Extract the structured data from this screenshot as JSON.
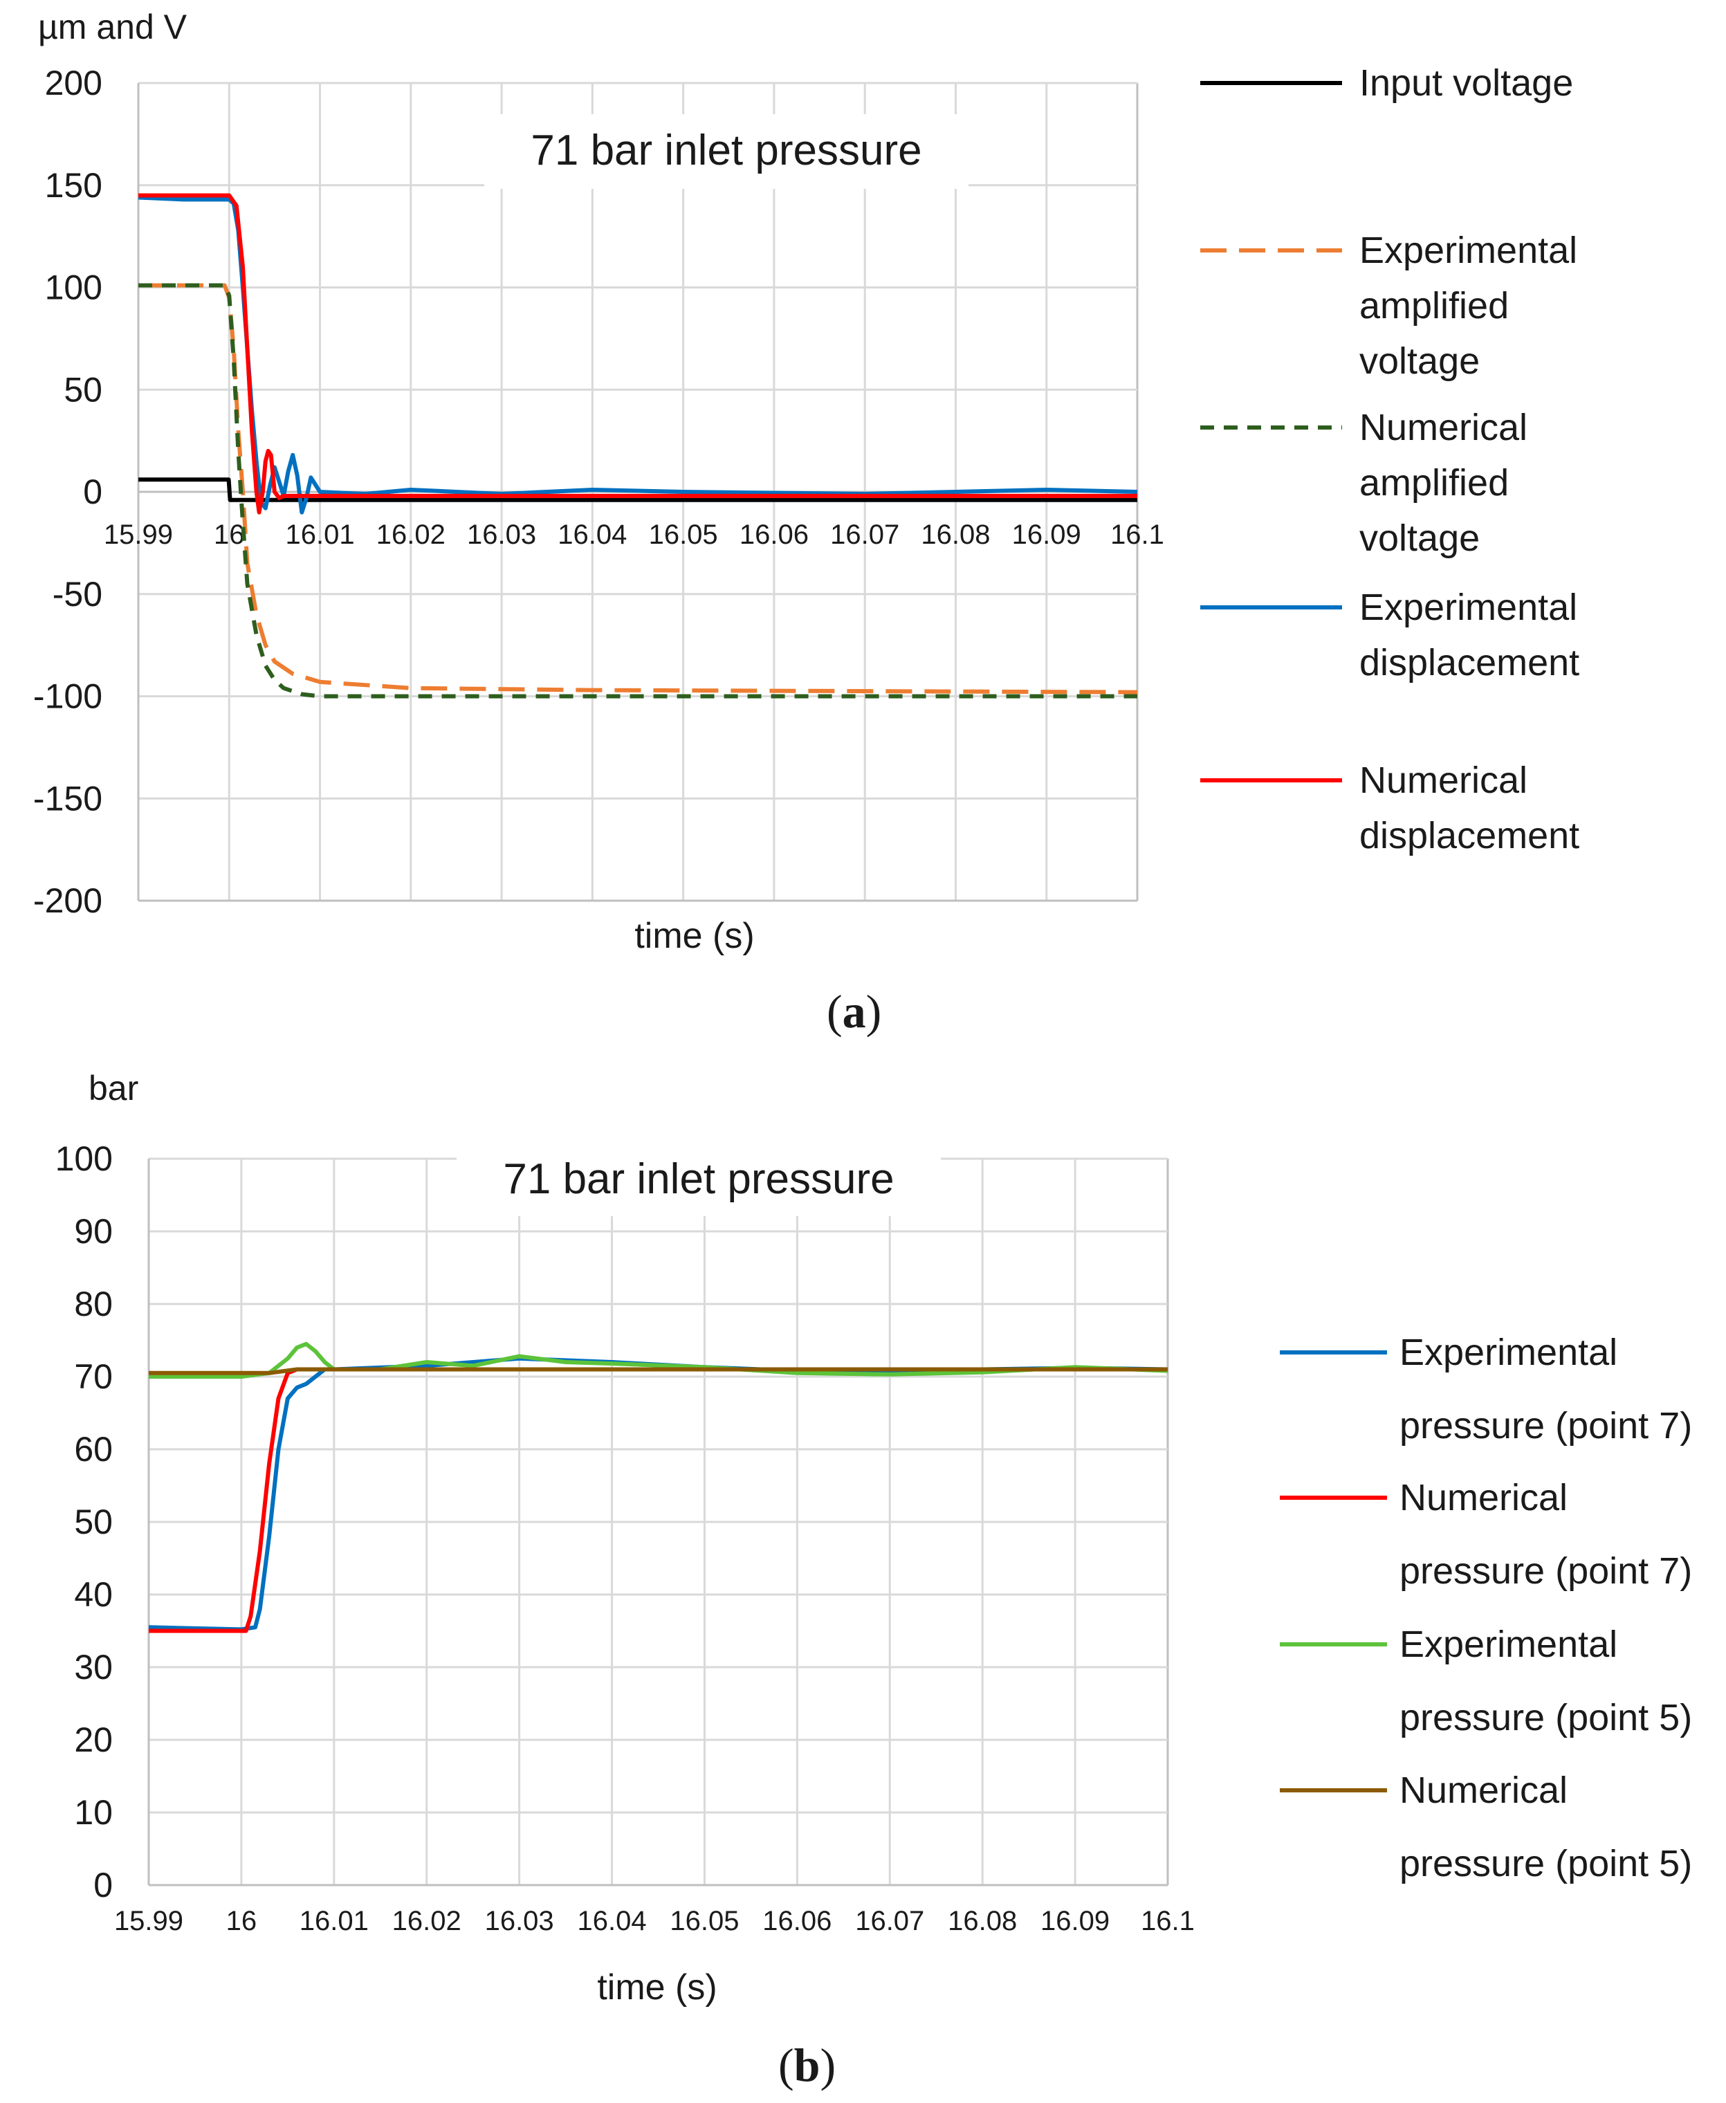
{
  "chart_data": [
    {
      "id": "a",
      "type": "line",
      "panel_label": "a",
      "title": "71 bar inlet pressure",
      "ylabel": "µm and V",
      "xlabel": "time (s)",
      "xlim": [
        15.99,
        16.1
      ],
      "ylim": [
        -200,
        200
      ],
      "grid": true,
      "legend_position": "right",
      "x_ticks": [
        "15.99",
        "16",
        "16.01",
        "16.02",
        "16.03",
        "16.04",
        "16.05",
        "16.06",
        "16.07",
        "16.08",
        "16.09",
        "16.1"
      ],
      "y_ticks": [
        "200",
        "150",
        "100",
        "50",
        "0",
        "-50",
        "-100",
        "-150",
        "-200"
      ],
      "series": [
        {
          "name": "Input voltage",
          "legend": [
            "Input voltage"
          ],
          "color": "#000000",
          "dash": "solid",
          "x": [
            15.99,
            15.99995,
            16.0001,
            16.1
          ],
          "y": [
            6,
            6,
            -4,
            -4
          ]
        },
        {
          "name": "Experimental amplified voltage",
          "legend": [
            "Experimental",
            "amplified",
            "voltage"
          ],
          "color": "#ED7D31",
          "dash": "long-dash",
          "x": [
            15.99,
            15.9995,
            16.0,
            16.0005,
            16.001,
            16.0015,
            16.002,
            16.003,
            16.004,
            16.005,
            16.007,
            16.01,
            16.02,
            16.04,
            16.1
          ],
          "y": [
            101,
            101,
            95,
            70,
            30,
            0,
            -35,
            -60,
            -75,
            -83,
            -89,
            -93,
            -96,
            -97,
            -98
          ]
        },
        {
          "name": "Numerical amplified voltage",
          "legend": [
            "Numerical",
            "amplified",
            "voltage"
          ],
          "color": "#2E5E1E",
          "dash": "short-dash",
          "x": [
            15.99,
            15.9995,
            16.0,
            16.0005,
            16.001,
            16.0015,
            16.002,
            16.003,
            16.004,
            16.005,
            16.006,
            16.008,
            16.01,
            16.1
          ],
          "y": [
            101,
            101,
            96,
            65,
            20,
            -15,
            -45,
            -70,
            -85,
            -92,
            -96,
            -99,
            -100,
            -100
          ]
        },
        {
          "name": "Experimental displacement",
          "legend": [
            "Experimental",
            "displacement"
          ],
          "color": "#0070C0",
          "dash": "solid",
          "x": [
            15.99,
            15.995,
            16.0,
            16.0005,
            16.001,
            16.0015,
            16.002,
            16.0025,
            16.003,
            16.0035,
            16.004,
            16.0045,
            16.005,
            16.0055,
            16.006,
            16.0065,
            16.007,
            16.0075,
            16.008,
            16.0085,
            16.009,
            16.01,
            16.015,
            16.02,
            16.03,
            16.04,
            16.05,
            16.07,
            16.09,
            16.1
          ],
          "y": [
            144,
            143,
            143,
            141,
            128,
            100,
            70,
            40,
            15,
            -5,
            -8,
            3,
            12,
            5,
            -2,
            10,
            18,
            8,
            -10,
            -3,
            7,
            0,
            -1,
            1,
            -1,
            1,
            0,
            -1,
            1,
            0
          ]
        },
        {
          "name": "Numerical displacement",
          "legend": [
            "Numerical",
            "displacement"
          ],
          "color": "#FF0000",
          "dash": "solid",
          "x": [
            15.99,
            16.0,
            16.0008,
            16.0015,
            16.002,
            16.0025,
            16.003,
            16.0033,
            16.0037,
            16.004,
            16.0043,
            16.0046,
            16.005,
            16.0055,
            16.006,
            16.1
          ],
          "y": [
            145,
            145,
            140,
            110,
            70,
            30,
            0,
            -10,
            0,
            15,
            20,
            18,
            0,
            -3,
            -2,
            -2
          ]
        }
      ]
    },
    {
      "id": "b",
      "type": "line",
      "panel_label": "b",
      "title": "71 bar inlet pressure",
      "ylabel": "bar",
      "xlabel": "time (s)",
      "xlim": [
        15.99,
        16.1
      ],
      "ylim": [
        0,
        100
      ],
      "grid": true,
      "legend_position": "right",
      "x_ticks": [
        "15.99",
        "16",
        "16.01",
        "16.02",
        "16.03",
        "16.04",
        "16.05",
        "16.06",
        "16.07",
        "16.08",
        "16.09",
        "16.1"
      ],
      "y_ticks": [
        "100",
        "90",
        "80",
        "70",
        "60",
        "50",
        "40",
        "30",
        "20",
        "10",
        "0"
      ],
      "series": [
        {
          "name": "Experimental pressure (point 7)",
          "legend": [
            "Experimental",
            "pressure (point 7)"
          ],
          "color": "#0070C0",
          "dash": "solid",
          "x": [
            15.99,
            16.0,
            16.0015,
            16.002,
            16.003,
            16.004,
            16.005,
            16.006,
            16.007,
            16.008,
            16.009,
            16.01,
            16.02,
            16.03,
            16.04,
            16.05,
            16.06,
            16.07,
            16.08,
            16.09,
            16.1
          ],
          "y": [
            35.5,
            35.2,
            35.5,
            38,
            48,
            60,
            67,
            68.5,
            69,
            70,
            71,
            71,
            71.5,
            72.5,
            72,
            71.3,
            70.8,
            70.6,
            71,
            71.2,
            71
          ]
        },
        {
          "name": "Numerical pressure (point 7)",
          "legend": [
            "Numerical",
            "pressure (point 7)"
          ],
          "color": "#FF0000",
          "dash": "solid",
          "x": [
            15.99,
            16.0005,
            16.001,
            16.002,
            16.003,
            16.004,
            16.005,
            16.006,
            16.1
          ],
          "y": [
            35,
            35,
            37,
            46,
            58,
            67,
            70.5,
            71,
            71
          ]
        },
        {
          "name": "Experimental pressure (point 5)",
          "legend": [
            "Experimental",
            "pressure (point 5)"
          ],
          "color": "#5CC33A",
          "dash": "solid",
          "x": [
            15.99,
            16.0,
            16.003,
            16.005,
            16.006,
            16.007,
            16.008,
            16.009,
            16.01,
            16.015,
            16.02,
            16.025,
            16.03,
            16.035,
            16.04,
            16.05,
            16.06,
            16.07,
            16.08,
            16.09,
            16.1
          ],
          "y": [
            70,
            70,
            70.5,
            72.5,
            74,
            74.5,
            73.5,
            72,
            71,
            71,
            72,
            71.5,
            72.8,
            72,
            71.8,
            71.3,
            70.5,
            70.3,
            70.6,
            71.3,
            70.8
          ]
        },
        {
          "name": "Numerical pressure (point 5)",
          "legend": [
            "Numerical",
            "pressure (point 5)"
          ],
          "color": "#8B5A00",
          "dash": "solid",
          "x": [
            15.99,
            16.003,
            16.006,
            16.1
          ],
          "y": [
            70.5,
            70.5,
            71,
            71
          ]
        }
      ]
    }
  ]
}
